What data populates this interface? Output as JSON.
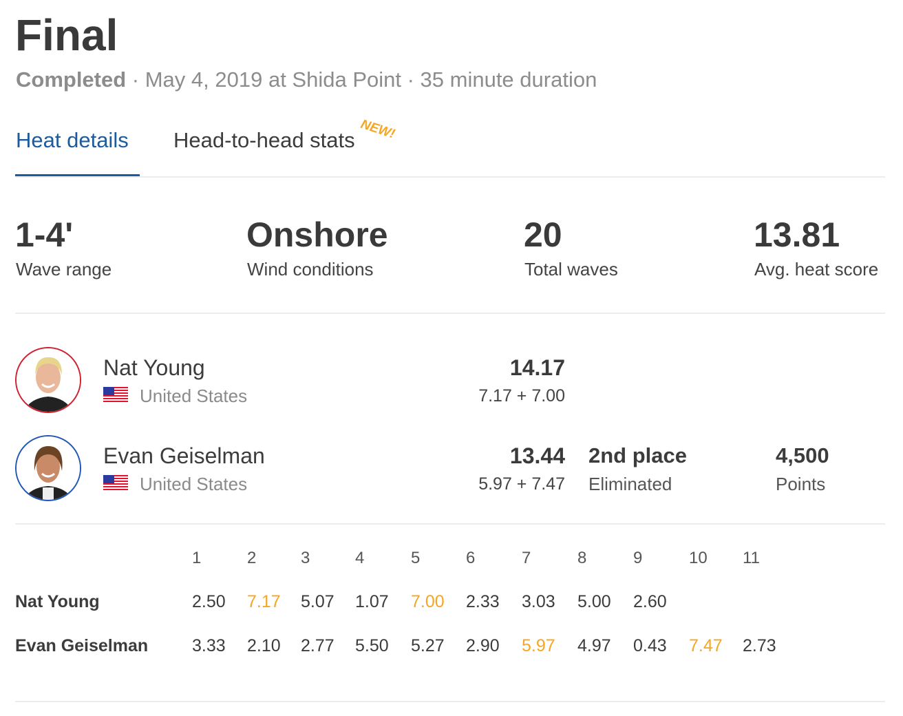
{
  "header": {
    "title": "Final",
    "status": "Completed",
    "details": " · May 4, 2019 at Shida Point · 35 minute duration"
  },
  "tabs": [
    {
      "label": "Heat details",
      "active": true
    },
    {
      "label": "Head-to-head stats",
      "badge": "NEW!"
    }
  ],
  "stats": [
    {
      "value": "1-4'",
      "label": "Wave range"
    },
    {
      "value": "Onshore",
      "label": "Wind conditions"
    },
    {
      "value": "20",
      "label": "Total waves"
    },
    {
      "value": "13.81",
      "label": "Avg. heat score"
    }
  ],
  "surfers": [
    {
      "name": "Nat Young",
      "country": "United States",
      "score": "14.17",
      "waves": "7.17 + 7.00",
      "ring_color": "#d0202e"
    },
    {
      "name": "Evan Geiselman",
      "country": "United States",
      "score": "13.44",
      "waves": "5.97 + 7.47",
      "place": "2nd place",
      "result": "Eliminated",
      "points": "4,500",
      "points_label": "Points",
      "ring_color": "#1f56b8"
    }
  ],
  "wave_table": {
    "headers": [
      "1",
      "2",
      "3",
      "4",
      "5",
      "6",
      "7",
      "8",
      "9",
      "10",
      "11"
    ],
    "rows": [
      {
        "name": "Nat Young",
        "scores": [
          {
            "v": "2.50"
          },
          {
            "v": "7.17",
            "counted": true
          },
          {
            "v": "5.07"
          },
          {
            "v": "1.07"
          },
          {
            "v": "7.00",
            "counted": true
          },
          {
            "v": "2.33"
          },
          {
            "v": "3.03"
          },
          {
            "v": "5.00"
          },
          {
            "v": "2.60"
          }
        ]
      },
      {
        "name": "Evan Geiselman",
        "scores": [
          {
            "v": "3.33"
          },
          {
            "v": "2.10"
          },
          {
            "v": "2.77"
          },
          {
            "v": "5.50"
          },
          {
            "v": "5.27"
          },
          {
            "v": "2.90"
          },
          {
            "v": "5.97",
            "counted": true
          },
          {
            "v": "4.97"
          },
          {
            "v": "0.43"
          },
          {
            "v": "7.47",
            "counted": true
          },
          {
            "v": "2.73"
          }
        ]
      }
    ]
  },
  "colors": {
    "accent": "#1a5c9e",
    "highlight": "#f5a623"
  }
}
